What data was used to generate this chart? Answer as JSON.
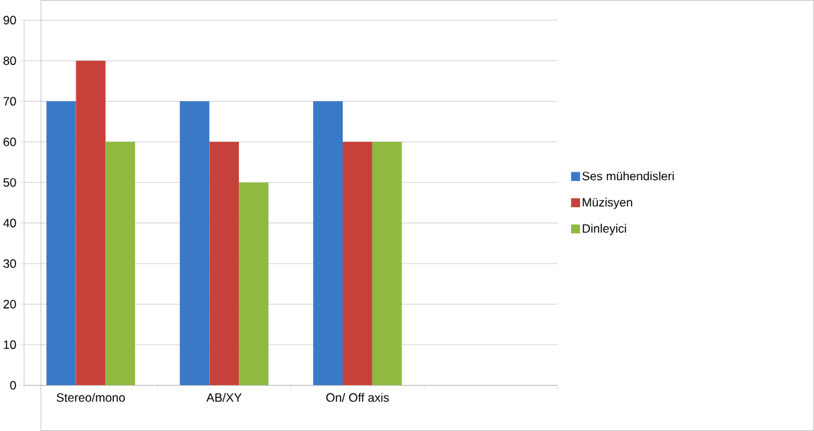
{
  "chart_data": {
    "type": "bar",
    "categories": [
      "Stereo/mono",
      "AB/XY",
      "On/ Off axis",
      null
    ],
    "series": [
      {
        "name": "Ses mühendisleri",
        "color": "#3a78c8",
        "values": [
          70,
          70,
          70,
          null
        ]
      },
      {
        "name": "Müzisyen",
        "color": "#c8403a",
        "values": [
          80,
          60,
          60,
          null
        ]
      },
      {
        "name": "Dinleyici",
        "color": "#8fb940",
        "values": [
          60,
          50,
          60,
          null
        ]
      }
    ],
    "ylim": [
      0,
      90
    ],
    "yticks": [
      0,
      10,
      20,
      30,
      40,
      50,
      60,
      70,
      80,
      90
    ],
    "grid": "y",
    "legend": "right"
  }
}
